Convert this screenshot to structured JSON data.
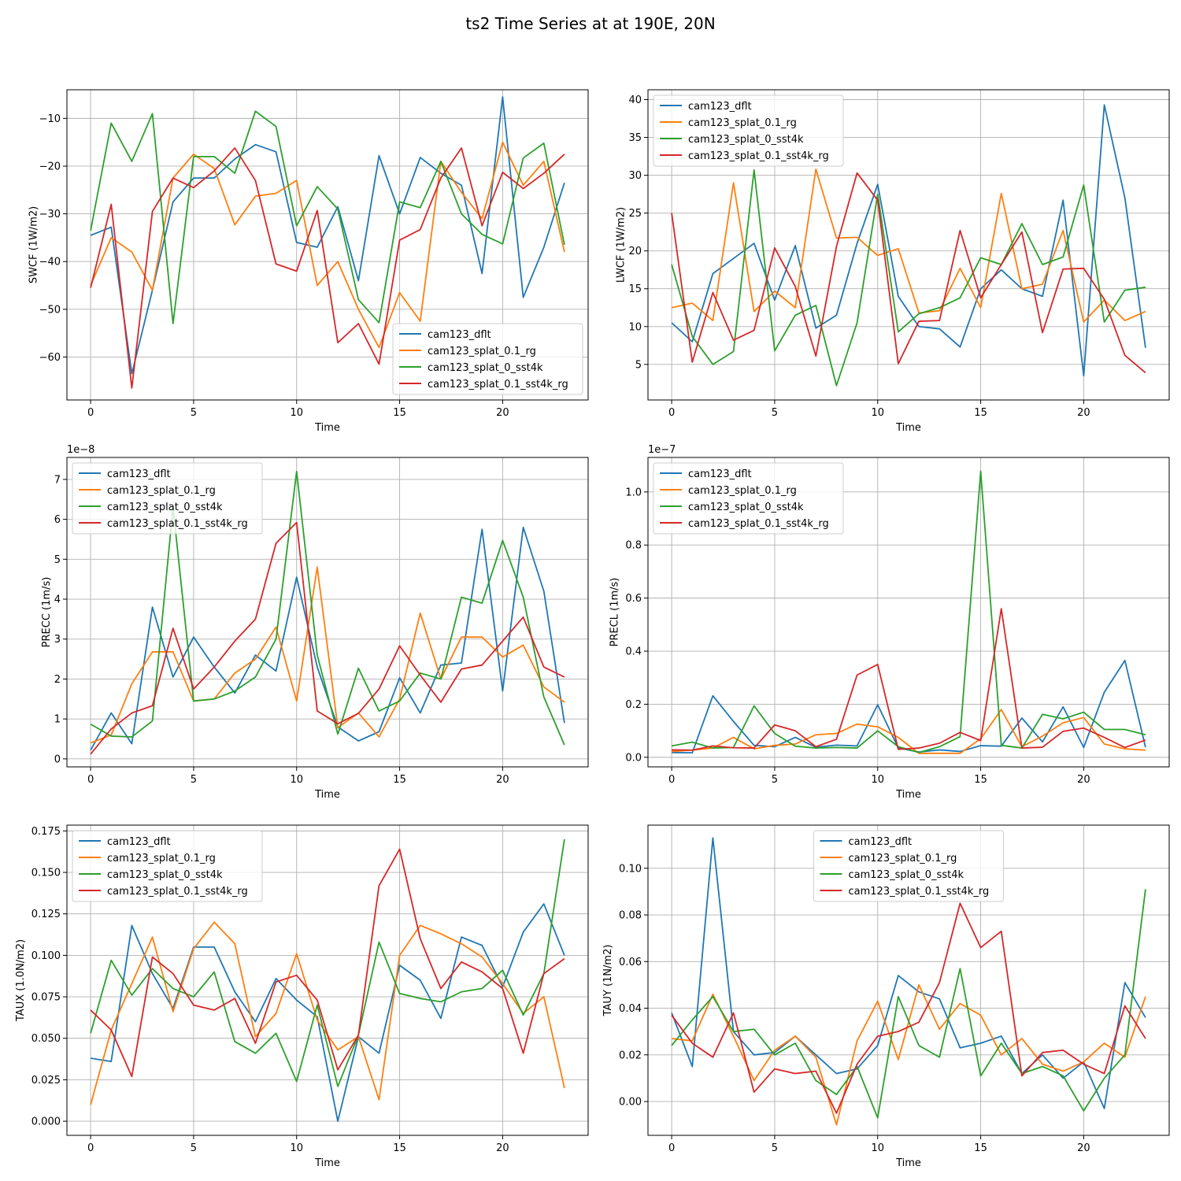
{
  "suptitle": "ts2 Time Series at at 190E, 20N",
  "colors": {
    "s0": "#1f77b4",
    "s1": "#ff7f0e",
    "s2": "#2ca02c",
    "s3": "#d62728"
  },
  "chart_data": [
    {
      "type": "line",
      "title": "",
      "xlabel": "Time",
      "ylabel": "SWCF (1W/m2)",
      "legend_loc": "lower-right",
      "xlim": [
        -1.15,
        24.15
      ],
      "ylim": [
        -69,
        -4
      ],
      "xticks": [
        0,
        5,
        10,
        15,
        20
      ],
      "yticks": [
        -60,
        -50,
        -40,
        -30,
        -20,
        -10
      ],
      "x": [
        0,
        1,
        2,
        3,
        4,
        5,
        6,
        7,
        8,
        9,
        10,
        11,
        12,
        13,
        14,
        15,
        16,
        17,
        18,
        19,
        20,
        21,
        22,
        23
      ],
      "series": [
        {
          "name": "cam123_dflt",
          "values": [
            -34.5,
            -32.8,
            -63.5,
            -46.0,
            -27.5,
            -22.5,
            -22.5,
            -18.5,
            -15.5,
            -17.0,
            -36.0,
            -37.0,
            -28.5,
            -44.0,
            -17.8,
            -30.0,
            -18.2,
            -21.5,
            -24.0,
            -42.5,
            -5.5,
            -47.5,
            -37.0,
            -23.5
          ]
        },
        {
          "name": "cam123_splat_0.1_rg",
          "values": [
            -45.0,
            -35.0,
            -38.0,
            -46.0,
            -22.5,
            -17.5,
            -20.5,
            -32.3,
            -26.3,
            -25.7,
            -23.0,
            -45.0,
            -40.0,
            -50.0,
            -58.0,
            -46.5,
            -52.5,
            -19.0,
            -25.5,
            -31.0,
            -15.0,
            -24.0,
            -19.0,
            -38.0
          ]
        },
        {
          "name": "cam123_splat_0_sst4k",
          "values": [
            -33.5,
            -11.0,
            -19.0,
            -9.0,
            -53.0,
            -18.0,
            -18.0,
            -21.5,
            -8.5,
            -11.7,
            -32.5,
            -24.3,
            -29.0,
            -48.0,
            -52.8,
            -27.5,
            -28.7,
            -19.0,
            -30.0,
            -34.3,
            -36.3,
            -18.3,
            -15.2,
            -36.5
          ]
        },
        {
          "name": "cam123_splat_0.1_sst4k_rg",
          "values": [
            -45.5,
            -28.0,
            -66.5,
            -29.5,
            -22.5,
            -24.5,
            -21.0,
            -16.2,
            -23.0,
            -40.5,
            -42.0,
            -29.3,
            -57.0,
            -53.0,
            -61.5,
            -35.5,
            -33.3,
            -22.5,
            -16.2,
            -32.5,
            -21.3,
            -24.7,
            -21.5,
            -17.5
          ]
        }
      ]
    },
    {
      "type": "line",
      "title": "",
      "xlabel": "Time",
      "ylabel": "LWCF (1W/m2)",
      "legend_loc": "upper-left",
      "xlim": [
        -1.15,
        24.15
      ],
      "ylim": [
        0.3,
        41.3
      ],
      "xticks": [
        0,
        5,
        10,
        15,
        20
      ],
      "yticks": [
        5,
        10,
        15,
        20,
        25,
        30,
        35,
        40
      ],
      "x": [
        0,
        1,
        2,
        3,
        4,
        5,
        6,
        7,
        8,
        9,
        10,
        11,
        12,
        13,
        14,
        15,
        16,
        17,
        18,
        19,
        20,
        21,
        22,
        23
      ],
      "series": [
        {
          "name": "cam123_dflt",
          "values": [
            10.5,
            8.0,
            17.0,
            19.0,
            21.0,
            13.5,
            20.7,
            9.8,
            11.5,
            21.0,
            28.8,
            14.0,
            10.0,
            9.7,
            7.3,
            15.0,
            17.5,
            15.0,
            14.0,
            26.7,
            3.5,
            39.3,
            27.0,
            7.2
          ]
        },
        {
          "name": "cam123_splat_0.1_rg",
          "values": [
            12.5,
            13.1,
            10.8,
            29.0,
            12.0,
            14.7,
            12.5,
            30.8,
            21.7,
            21.8,
            19.4,
            20.3,
            11.8,
            12.1,
            17.7,
            12.5,
            27.6,
            15.0,
            15.6,
            22.7,
            10.6,
            13.5,
            10.8,
            12.0
          ]
        },
        {
          "name": "cam123_splat_0_sst4k",
          "values": [
            18.2,
            8.7,
            5.0,
            6.7,
            30.7,
            6.8,
            11.5,
            12.8,
            2.2,
            10.5,
            27.5,
            9.3,
            11.7,
            12.5,
            13.8,
            19.1,
            18.2,
            23.6,
            18.2,
            19.2,
            28.7,
            10.6,
            14.8,
            15.2
          ]
        },
        {
          "name": "cam123_splat_0.1_sst4k_rg",
          "values": [
            25.0,
            5.3,
            14.5,
            8.2,
            9.5,
            20.4,
            15.3,
            6.1,
            20.6,
            30.3,
            26.7,
            5.1,
            10.7,
            10.8,
            22.7,
            13.8,
            18.2,
            22.5,
            9.2,
            17.6,
            17.7,
            13.6,
            6.2,
            3.9
          ]
        }
      ]
    },
    {
      "type": "line",
      "title": "",
      "xlabel": "Time",
      "ylabel": "PRECC (1m/s)",
      "offset_text": "1e−8",
      "legend_loc": "upper-left",
      "xlim": [
        -1.15,
        24.15
      ],
      "ylim": [
        -0.2,
        7.55
      ],
      "xticks": [
        0,
        5,
        10,
        15,
        20
      ],
      "yticks": [
        0,
        1,
        2,
        3,
        4,
        5,
        6,
        7
      ],
      "x": [
        0,
        1,
        2,
        3,
        4,
        5,
        6,
        7,
        8,
        9,
        10,
        11,
        12,
        13,
        14,
        15,
        16,
        17,
        18,
        19,
        20,
        21,
        22,
        23
      ],
      "series": [
        {
          "name": "cam123_dflt",
          "values": [
            0.22,
            1.15,
            0.38,
            3.8,
            2.05,
            3.05,
            2.3,
            1.65,
            2.6,
            2.2,
            4.55,
            2.3,
            0.8,
            0.45,
            0.68,
            2.03,
            1.15,
            2.35,
            2.4,
            5.75,
            1.7,
            5.8,
            4.2,
            0.9
          ]
        },
        {
          "name": "cam123_splat_0.1_rg",
          "values": [
            0.4,
            0.6,
            1.88,
            2.68,
            2.68,
            1.45,
            1.5,
            2.15,
            2.5,
            3.3,
            1.45,
            4.8,
            0.78,
            1.15,
            0.55,
            1.5,
            3.65,
            2.0,
            3.05,
            3.05,
            2.55,
            2.85,
            1.8,
            1.42
          ]
        },
        {
          "name": "cam123_splat_0_sst4k",
          "values": [
            0.87,
            0.57,
            0.55,
            0.95,
            6.3,
            1.45,
            1.5,
            1.7,
            2.05,
            3.0,
            7.2,
            2.6,
            0.62,
            2.27,
            1.2,
            1.45,
            2.15,
            2.0,
            4.05,
            3.9,
            5.47,
            4.05,
            1.55,
            0.35
          ]
        },
        {
          "name": "cam123_splat_0.1_sst4k_rg",
          "values": [
            0.12,
            0.75,
            1.15,
            1.33,
            3.27,
            1.75,
            2.3,
            2.95,
            3.5,
            5.4,
            5.92,
            1.2,
            0.88,
            1.14,
            1.75,
            2.83,
            2.1,
            1.42,
            2.25,
            2.35,
            2.95,
            3.55,
            2.3,
            2.05
          ]
        }
      ]
    },
    {
      "type": "line",
      "title": "",
      "xlabel": "Time",
      "ylabel": "PRECL (1m/s)",
      "offset_text": "1e−7",
      "legend_loc": "upper-left",
      "xlim": [
        -1.15,
        24.15
      ],
      "ylim": [
        -0.036,
        1.13
      ],
      "xticks": [
        0,
        5,
        10,
        15,
        20
      ],
      "yticks": [
        0.0,
        0.2,
        0.4,
        0.6,
        0.8,
        1.0
      ],
      "x": [
        0,
        1,
        2,
        3,
        4,
        5,
        6,
        7,
        8,
        9,
        10,
        11,
        12,
        13,
        14,
        15,
        16,
        17,
        18,
        19,
        20,
        21,
        22,
        23
      ],
      "series": [
        {
          "name": "cam123_dflt",
          "values": [
            0.018,
            0.017,
            0.232,
            0.135,
            0.045,
            0.04,
            0.075,
            0.038,
            0.046,
            0.043,
            0.198,
            0.035,
            0.02,
            0.028,
            0.022,
            0.044,
            0.042,
            0.148,
            0.058,
            0.19,
            0.037,
            0.245,
            0.365,
            0.038
          ]
        },
        {
          "name": "cam123_splat_0.1_rg",
          "values": [
            0.022,
            0.027,
            0.035,
            0.075,
            0.032,
            0.045,
            0.05,
            0.085,
            0.09,
            0.125,
            0.115,
            0.075,
            0.015,
            0.015,
            0.015,
            0.07,
            0.18,
            0.04,
            0.08,
            0.13,
            0.15,
            0.05,
            0.032,
            0.027
          ]
        },
        {
          "name": "cam123_splat_0_sst4k",
          "values": [
            0.043,
            0.057,
            0.035,
            0.037,
            0.194,
            0.09,
            0.042,
            0.035,
            0.037,
            0.035,
            0.1,
            0.04,
            0.018,
            0.04,
            0.078,
            1.078,
            0.045,
            0.035,
            0.162,
            0.145,
            0.17,
            0.105,
            0.105,
            0.085
          ]
        },
        {
          "name": "cam123_splat_0.1_sst4k_rg",
          "values": [
            0.028,
            0.027,
            0.043,
            0.036,
            0.035,
            0.122,
            0.1,
            0.04,
            0.068,
            0.31,
            0.35,
            0.03,
            0.035,
            0.053,
            0.094,
            0.063,
            0.56,
            0.035,
            0.038,
            0.098,
            0.11,
            0.075,
            0.037,
            0.065
          ]
        }
      ]
    },
    {
      "type": "line",
      "title": "",
      "xlabel": "Time",
      "ylabel": "TAUX (1.0N/m2)",
      "legend_loc": "upper-left",
      "xlim": [
        -1.15,
        24.15
      ],
      "ylim": [
        -0.0085,
        0.1785
      ],
      "xticks": [
        0,
        5,
        10,
        15,
        20
      ],
      "yticks": [
        0.0,
        0.025,
        0.05,
        0.075,
        0.1,
        0.125,
        0.15,
        0.175
      ],
      "x": [
        0,
        1,
        2,
        3,
        4,
        5,
        6,
        7,
        8,
        9,
        10,
        11,
        12,
        13,
        14,
        15,
        16,
        17,
        18,
        19,
        20,
        21,
        22,
        23
      ],
      "series": [
        {
          "name": "cam123_dflt",
          "values": [
            0.038,
            0.036,
            0.118,
            0.089,
            0.068,
            0.105,
            0.105,
            0.078,
            0.06,
            0.086,
            0.073,
            0.063,
            0.0,
            0.051,
            0.041,
            0.094,
            0.085,
            0.062,
            0.111,
            0.106,
            0.081,
            0.114,
            0.131,
            0.1
          ]
        },
        {
          "name": "cam123_splat_0.1_rg",
          "values": [
            0.01,
            0.055,
            0.083,
            0.111,
            0.066,
            0.104,
            0.12,
            0.107,
            0.051,
            0.065,
            0.101,
            0.061,
            0.043,
            0.051,
            0.013,
            0.1,
            0.118,
            0.113,
            0.107,
            0.099,
            0.083,
            0.065,
            0.075,
            0.02
          ]
        },
        {
          "name": "cam123_splat_0_sst4k",
          "values": [
            0.053,
            0.097,
            0.076,
            0.092,
            0.08,
            0.075,
            0.09,
            0.048,
            0.041,
            0.053,
            0.024,
            0.07,
            0.021,
            0.052,
            0.108,
            0.077,
            0.074,
            0.072,
            0.078,
            0.08,
            0.091,
            0.064,
            0.089,
            0.17
          ]
        },
        {
          "name": "cam123_splat_0.1_sst4k_rg",
          "values": [
            0.067,
            0.055,
            0.027,
            0.099,
            0.089,
            0.07,
            0.067,
            0.074,
            0.047,
            0.084,
            0.088,
            0.073,
            0.031,
            0.052,
            0.142,
            0.164,
            0.11,
            0.08,
            0.096,
            0.09,
            0.08,
            0.041,
            0.089,
            0.098
          ]
        }
      ]
    },
    {
      "type": "line",
      "title": "",
      "xlabel": "Time",
      "ylabel": "TAUY (1N/m2)",
      "legend_loc": "upper-center",
      "xlim": [
        -1.15,
        24.15
      ],
      "ylim": [
        -0.0145,
        0.1185
      ],
      "xticks": [
        0,
        5,
        10,
        15,
        20
      ],
      "yticks": [
        0.0,
        0.02,
        0.04,
        0.06,
        0.08,
        0.1
      ],
      "x": [
        0,
        1,
        2,
        3,
        4,
        5,
        6,
        7,
        8,
        9,
        10,
        11,
        12,
        13,
        14,
        15,
        16,
        17,
        18,
        19,
        20,
        21,
        22,
        23
      ],
      "series": [
        {
          "name": "cam123_dflt",
          "values": [
            0.038,
            0.015,
            0.113,
            0.03,
            0.02,
            0.021,
            0.028,
            0.02,
            0.012,
            0.014,
            0.024,
            0.054,
            0.047,
            0.044,
            0.023,
            0.025,
            0.028,
            0.012,
            0.02,
            0.01,
            0.017,
            -0.003,
            0.051,
            0.036
          ]
        },
        {
          "name": "cam123_splat_0.1_rg",
          "values": [
            0.027,
            0.026,
            0.046,
            0.028,
            0.009,
            0.022,
            0.028,
            0.019,
            -0.01,
            0.026,
            0.043,
            0.018,
            0.05,
            0.031,
            0.042,
            0.037,
            0.02,
            0.027,
            0.016,
            0.013,
            0.017,
            0.025,
            0.019,
            0.045
          ]
        },
        {
          "name": "cam123_splat_0_sst4k",
          "values": [
            0.024,
            0.035,
            0.045,
            0.03,
            0.031,
            0.02,
            0.025,
            0.009,
            0.003,
            0.015,
            -0.007,
            0.045,
            0.024,
            0.019,
            0.057,
            0.011,
            0.025,
            0.012,
            0.015,
            0.011,
            -0.004,
            0.01,
            0.02,
            0.091
          ]
        },
        {
          "name": "cam123_splat_0.1_sst4k_rg",
          "values": [
            0.037,
            0.025,
            0.019,
            0.038,
            0.004,
            0.014,
            0.012,
            0.013,
            -0.005,
            0.016,
            0.028,
            0.03,
            0.034,
            0.051,
            0.085,
            0.066,
            0.073,
            0.011,
            0.021,
            0.022,
            0.016,
            0.012,
            0.041,
            0.027
          ]
        }
      ]
    }
  ]
}
